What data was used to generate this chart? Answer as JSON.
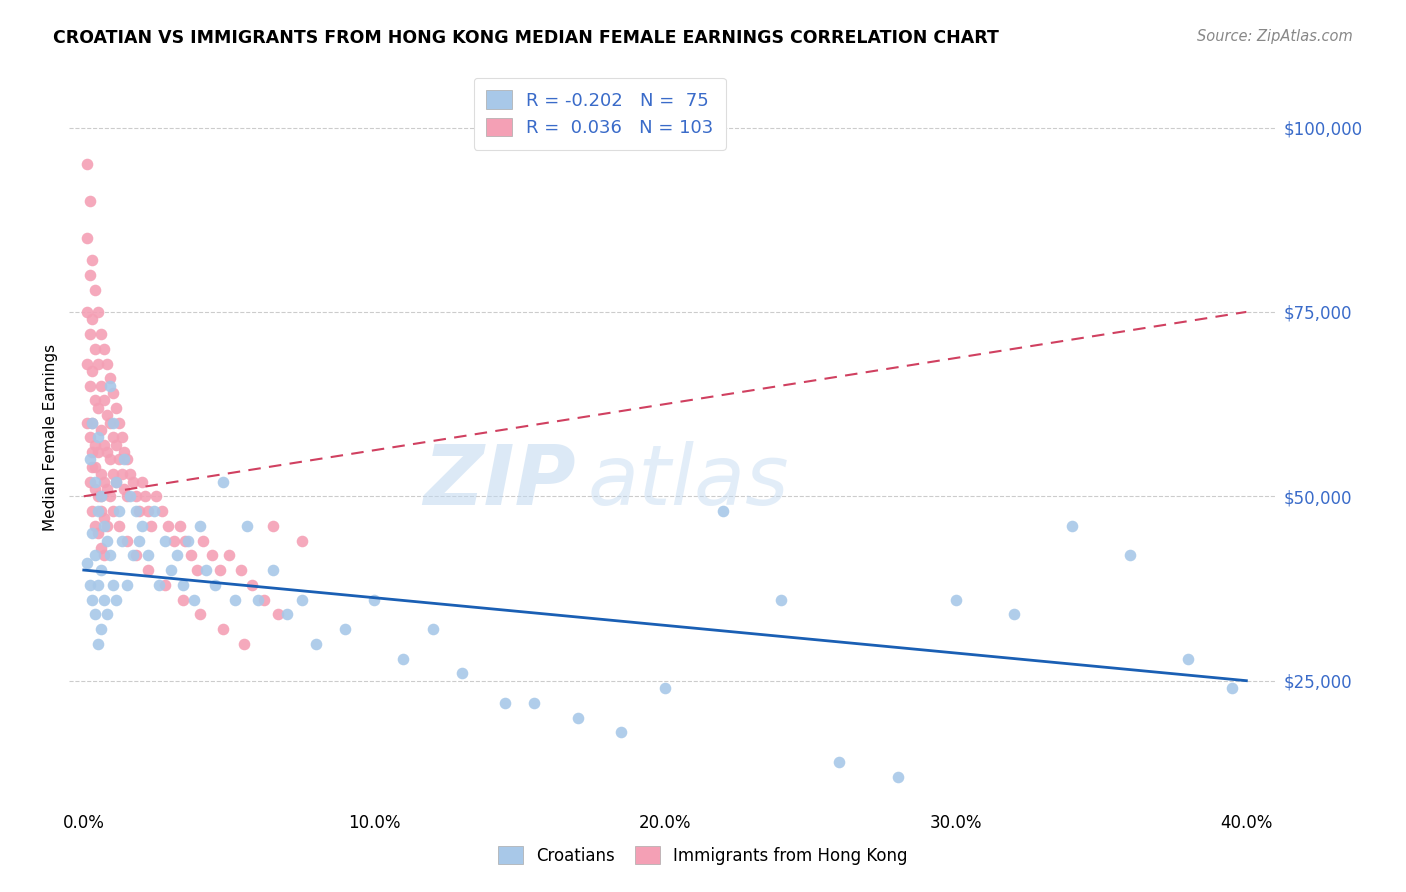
{
  "title": "CROATIAN VS IMMIGRANTS FROM HONG KONG MEDIAN FEMALE EARNINGS CORRELATION CHART",
  "source": "Source: ZipAtlas.com",
  "xlabel_ticks": [
    "0.0%",
    "10.0%",
    "20.0%",
    "30.0%",
    "40.0%"
  ],
  "xlabel_tick_vals": [
    0.0,
    0.1,
    0.2,
    0.3,
    0.4
  ],
  "ylabel": "Median Female Earnings",
  "ytick_labels": [
    "$25,000",
    "$50,000",
    "$75,000",
    "$100,000"
  ],
  "ytick_vals": [
    25000,
    50000,
    75000,
    100000
  ],
  "xlim": [
    -0.005,
    0.41
  ],
  "ylim": [
    8000,
    108000
  ],
  "blue_R": -0.202,
  "blue_N": 75,
  "pink_R": 0.036,
  "pink_N": 103,
  "blue_color": "#a8c8e8",
  "pink_color": "#f4a0b5",
  "blue_line_color": "#1a5fb4",
  "pink_line_color": "#d04060",
  "watermark_zip": "ZIP",
  "watermark_atlas": "atlas",
  "legend1_label": "Croatians",
  "legend2_label": "Immigrants from Hong Kong",
  "blue_scatter_x": [
    0.001,
    0.002,
    0.002,
    0.003,
    0.003,
    0.003,
    0.004,
    0.004,
    0.004,
    0.005,
    0.005,
    0.005,
    0.005,
    0.006,
    0.006,
    0.006,
    0.007,
    0.007,
    0.008,
    0.008,
    0.009,
    0.009,
    0.01,
    0.01,
    0.011,
    0.011,
    0.012,
    0.013,
    0.014,
    0.015,
    0.016,
    0.017,
    0.018,
    0.019,
    0.02,
    0.022,
    0.024,
    0.026,
    0.028,
    0.03,
    0.032,
    0.034,
    0.036,
    0.038,
    0.04,
    0.042,
    0.045,
    0.048,
    0.052,
    0.056,
    0.06,
    0.065,
    0.07,
    0.075,
    0.08,
    0.09,
    0.1,
    0.11,
    0.12,
    0.13,
    0.145,
    0.155,
    0.17,
    0.185,
    0.2,
    0.22,
    0.24,
    0.26,
    0.28,
    0.3,
    0.32,
    0.34,
    0.36,
    0.38,
    0.395
  ],
  "blue_scatter_y": [
    41000,
    55000,
    38000,
    60000,
    45000,
    36000,
    52000,
    42000,
    34000,
    58000,
    48000,
    38000,
    30000,
    50000,
    40000,
    32000,
    46000,
    36000,
    44000,
    34000,
    65000,
    42000,
    60000,
    38000,
    52000,
    36000,
    48000,
    44000,
    55000,
    38000,
    50000,
    42000,
    48000,
    44000,
    46000,
    42000,
    48000,
    38000,
    44000,
    40000,
    42000,
    38000,
    44000,
    36000,
    46000,
    40000,
    38000,
    52000,
    36000,
    46000,
    36000,
    40000,
    34000,
    36000,
    30000,
    32000,
    36000,
    28000,
    32000,
    26000,
    22000,
    22000,
    20000,
    18000,
    24000,
    48000,
    36000,
    14000,
    12000,
    36000,
    34000,
    46000,
    42000,
    28000,
    24000
  ],
  "pink_scatter_x": [
    0.001,
    0.001,
    0.001,
    0.001,
    0.001,
    0.002,
    0.002,
    0.002,
    0.002,
    0.002,
    0.002,
    0.003,
    0.003,
    0.003,
    0.003,
    0.003,
    0.003,
    0.004,
    0.004,
    0.004,
    0.004,
    0.004,
    0.004,
    0.005,
    0.005,
    0.005,
    0.005,
    0.005,
    0.005,
    0.006,
    0.006,
    0.006,
    0.006,
    0.006,
    0.006,
    0.007,
    0.007,
    0.007,
    0.007,
    0.007,
    0.007,
    0.008,
    0.008,
    0.008,
    0.008,
    0.008,
    0.009,
    0.009,
    0.009,
    0.009,
    0.01,
    0.01,
    0.01,
    0.011,
    0.011,
    0.011,
    0.012,
    0.012,
    0.013,
    0.013,
    0.014,
    0.014,
    0.015,
    0.015,
    0.016,
    0.017,
    0.018,
    0.019,
    0.02,
    0.021,
    0.022,
    0.023,
    0.025,
    0.027,
    0.029,
    0.031,
    0.033,
    0.035,
    0.037,
    0.039,
    0.041,
    0.044,
    0.047,
    0.05,
    0.054,
    0.058,
    0.062,
    0.067,
    0.01,
    0.012,
    0.015,
    0.018,
    0.022,
    0.028,
    0.034,
    0.04,
    0.048,
    0.055,
    0.065,
    0.075,
    0.003,
    0.004,
    0.006
  ],
  "pink_scatter_y": [
    95000,
    85000,
    75000,
    68000,
    60000,
    90000,
    80000,
    72000,
    65000,
    58000,
    52000,
    82000,
    74000,
    67000,
    60000,
    54000,
    48000,
    78000,
    70000,
    63000,
    57000,
    51000,
    46000,
    75000,
    68000,
    62000,
    56000,
    50000,
    45000,
    72000,
    65000,
    59000,
    53000,
    48000,
    43000,
    70000,
    63000,
    57000,
    52000,
    47000,
    42000,
    68000,
    61000,
    56000,
    51000,
    46000,
    66000,
    60000,
    55000,
    50000,
    64000,
    58000,
    53000,
    62000,
    57000,
    52000,
    60000,
    55000,
    58000,
    53000,
    56000,
    51000,
    55000,
    50000,
    53000,
    52000,
    50000,
    48000,
    52000,
    50000,
    48000,
    46000,
    50000,
    48000,
    46000,
    44000,
    46000,
    44000,
    42000,
    40000,
    44000,
    42000,
    40000,
    42000,
    40000,
    38000,
    36000,
    34000,
    48000,
    46000,
    44000,
    42000,
    40000,
    38000,
    36000,
    34000,
    32000,
    30000,
    46000,
    44000,
    56000,
    54000,
    50000
  ]
}
